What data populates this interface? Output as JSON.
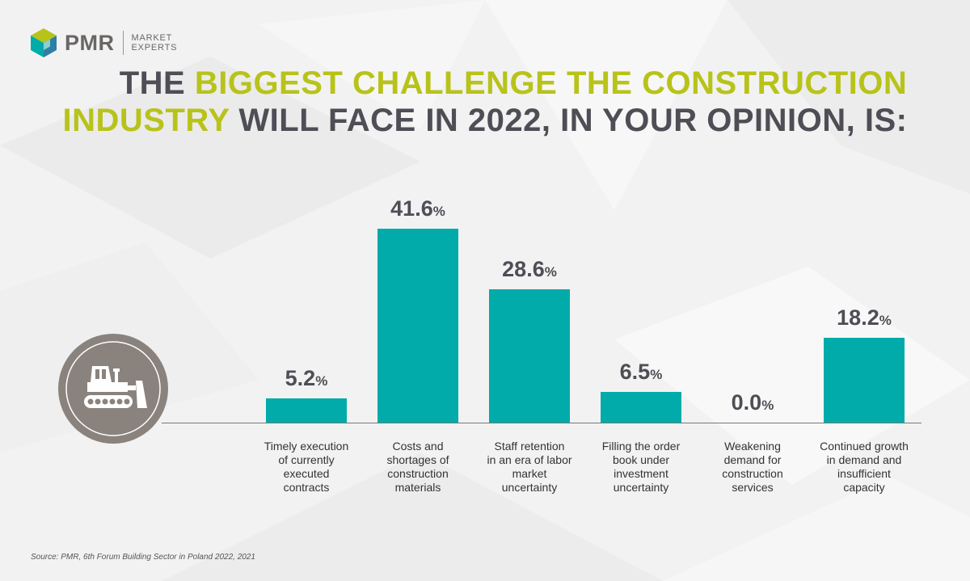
{
  "logo": {
    "brand": "PMR",
    "tagline_1": "MARKET",
    "tagline_2": "EXPERTS"
  },
  "title": {
    "part1": "THE ",
    "part2": "BIGGEST CHALLENGE THE CONSTRUCTION",
    "part3": "INDUSTRY",
    "part4": " WILL FACE IN 2022, IN YOUR OPINION, IS:"
  },
  "colors": {
    "bar": "#00aba9",
    "highlight": "#b8c31a",
    "title": "#4f4d55",
    "icon_bg": "#8a837d"
  },
  "icon": "bulldozer-icon",
  "chart_data": {
    "type": "bar",
    "title": "THE BIGGEST CHALLENGE THE CONSTRUCTION INDUSTRY WILL FACE IN 2022, IN YOUR OPINION, IS:",
    "categories": [
      "Timely execution of currently executed contracts",
      "Costs and shortages of construction materials",
      "Staff retention in an era of labor market uncertainty",
      "Filling the order book under investment uncertainty",
      "Weakening demand for construction services",
      "Continued growth in demand and insufficient capacity"
    ],
    "category_lines": [
      [
        "Timely execution",
        "of currently",
        "executed",
        "contracts"
      ],
      [
        "Costs and",
        "shortages of",
        "construction",
        "materials"
      ],
      [
        "Staff retention",
        "in an era of labor",
        "market",
        "uncertainty"
      ],
      [
        "Filling the order",
        "book under",
        "investment",
        "uncertainty"
      ],
      [
        "Weakening",
        "demand for",
        "construction",
        "services"
      ],
      [
        "Continued growth",
        "in demand and",
        "insufficient",
        "capacity"
      ]
    ],
    "values": [
      5.2,
      41.6,
      28.6,
      6.5,
      0.0,
      18.2
    ],
    "value_labels": [
      "5.2",
      "41.6",
      "28.6",
      "6.5",
      "0.0",
      "18.2"
    ],
    "unit": "%",
    "xlabel": "",
    "ylabel": "",
    "grid": false
  },
  "source": "Source: PMR, 6th Forum Building Sector in Poland 2022, 2021"
}
